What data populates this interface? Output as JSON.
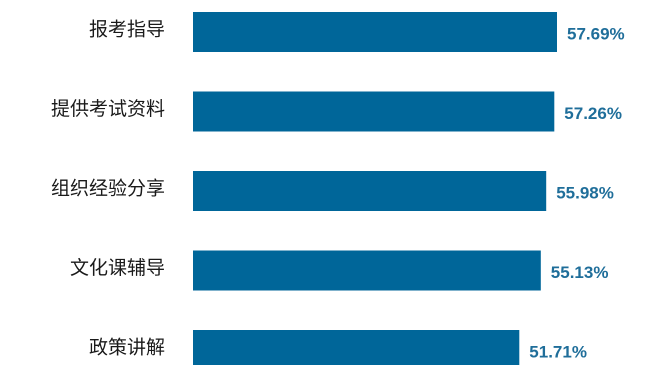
{
  "chart_data": {
    "type": "bar",
    "orientation": "horizontal",
    "categories": [
      "报考指导",
      "提供考试资料",
      "组织经验分享",
      "文化课辅导",
      "政策讲解"
    ],
    "values": [
      57.69,
      57.26,
      55.98,
      55.13,
      51.71
    ],
    "value_labels": [
      "57.69%",
      "57.26%",
      "55.98%",
      "55.13%",
      "51.71%"
    ],
    "unit": "%",
    "title": "",
    "xlabel": "",
    "ylabel": "",
    "grid": false,
    "bar_color": "#006699",
    "label_color": "#1F6E9A"
  }
}
